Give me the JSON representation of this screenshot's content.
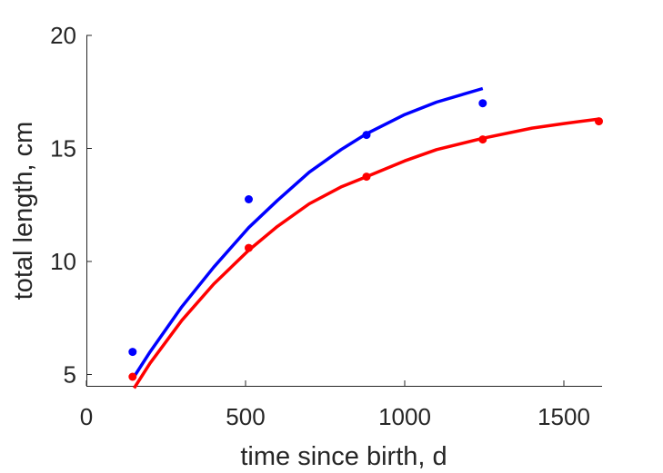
{
  "chart_data": {
    "type": "line",
    "title": "",
    "xlabel": "time since birth, d",
    "ylabel": "total length, cm",
    "xlim": [
      0,
      1620
    ],
    "ylim": [
      4.5,
      20
    ],
    "xticks": [
      0,
      500,
      1000,
      1500
    ],
    "yticks": [
      5,
      10,
      15,
      20
    ],
    "grid": false,
    "legend": "none",
    "series": [
      {
        "color": "#0000ff",
        "points": [
          [
            145,
            6.0
          ],
          [
            510,
            12.75
          ],
          [
            880,
            15.6
          ],
          [
            1245,
            17.0
          ]
        ],
        "curve": [
          [
            145,
            4.8
          ],
          [
            200,
            6.0
          ],
          [
            300,
            8.0
          ],
          [
            400,
            9.75
          ],
          [
            510,
            11.5
          ],
          [
            600,
            12.7
          ],
          [
            700,
            13.95
          ],
          [
            800,
            14.95
          ],
          [
            880,
            15.65
          ],
          [
            1000,
            16.5
          ],
          [
            1100,
            17.05
          ],
          [
            1245,
            17.65
          ]
        ]
      },
      {
        "color": "#ff0000",
        "points": [
          [
            145,
            4.9
          ],
          [
            510,
            10.6
          ],
          [
            880,
            13.75
          ],
          [
            1245,
            15.4
          ],
          [
            1610,
            16.2
          ]
        ],
        "curve": [
          [
            150,
            4.4
          ],
          [
            200,
            5.5
          ],
          [
            300,
            7.4
          ],
          [
            400,
            9.0
          ],
          [
            510,
            10.5
          ],
          [
            600,
            11.55
          ],
          [
            700,
            12.55
          ],
          [
            800,
            13.3
          ],
          [
            880,
            13.75
          ],
          [
            1000,
            14.45
          ],
          [
            1100,
            14.95
          ],
          [
            1245,
            15.45
          ],
          [
            1400,
            15.9
          ],
          [
            1500,
            16.1
          ],
          [
            1610,
            16.3
          ]
        ]
      }
    ]
  }
}
